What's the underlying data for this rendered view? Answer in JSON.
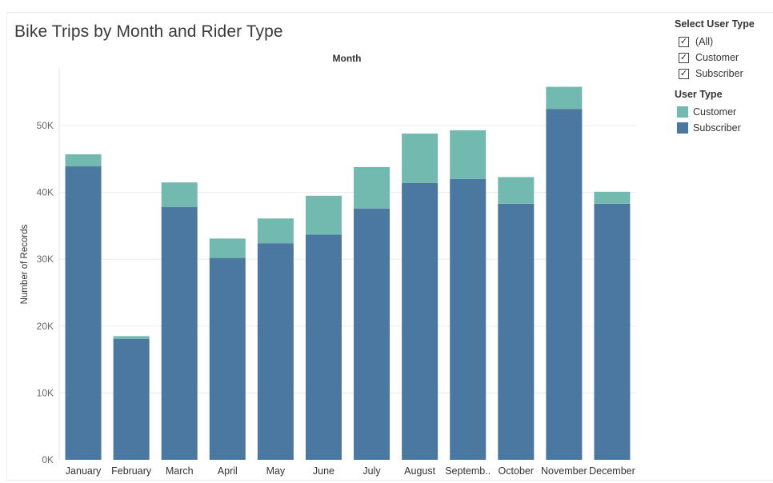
{
  "title": "Bike Trips by Month and Rider Type",
  "filter": {
    "heading": "Select User Type",
    "options": [
      {
        "label": "(All)",
        "checked": true
      },
      {
        "label": "Customer",
        "checked": true
      },
      {
        "label": "Subscriber",
        "checked": true
      }
    ]
  },
  "legend": {
    "heading": "User Type",
    "items": [
      {
        "label": "Customer",
        "color": "#72b9b0"
      },
      {
        "label": "Subscriber",
        "color": "#4b78a0"
      }
    ]
  },
  "chart_data": {
    "type": "bar",
    "stacked": true,
    "title": "Bike Trips by Month and Rider Type",
    "xlabel": "Month",
    "ylabel": "Number of Records",
    "categories": [
      "January",
      "February",
      "March",
      "April",
      "May",
      "June",
      "July",
      "August",
      "Septemb..",
      "October",
      "November",
      "December"
    ],
    "series": [
      {
        "name": "Subscriber",
        "color": "#4b78a0",
        "values": [
          43900,
          18100,
          37800,
          30200,
          32400,
          33700,
          37600,
          41400,
          42000,
          38300,
          52500,
          38300
        ]
      },
      {
        "name": "Customer",
        "color": "#72b9b0",
        "values": [
          1800,
          400,
          3700,
          2900,
          3700,
          5800,
          6200,
          7400,
          7300,
          4000,
          3300,
          1800
        ]
      }
    ],
    "ylim": [
      0,
      58500
    ],
    "yticks": [
      0,
      10000,
      20000,
      30000,
      40000,
      50000
    ],
    "ytick_labels": [
      "0K",
      "10K",
      "20K",
      "30K",
      "40K",
      "50K"
    ],
    "grid": true
  }
}
